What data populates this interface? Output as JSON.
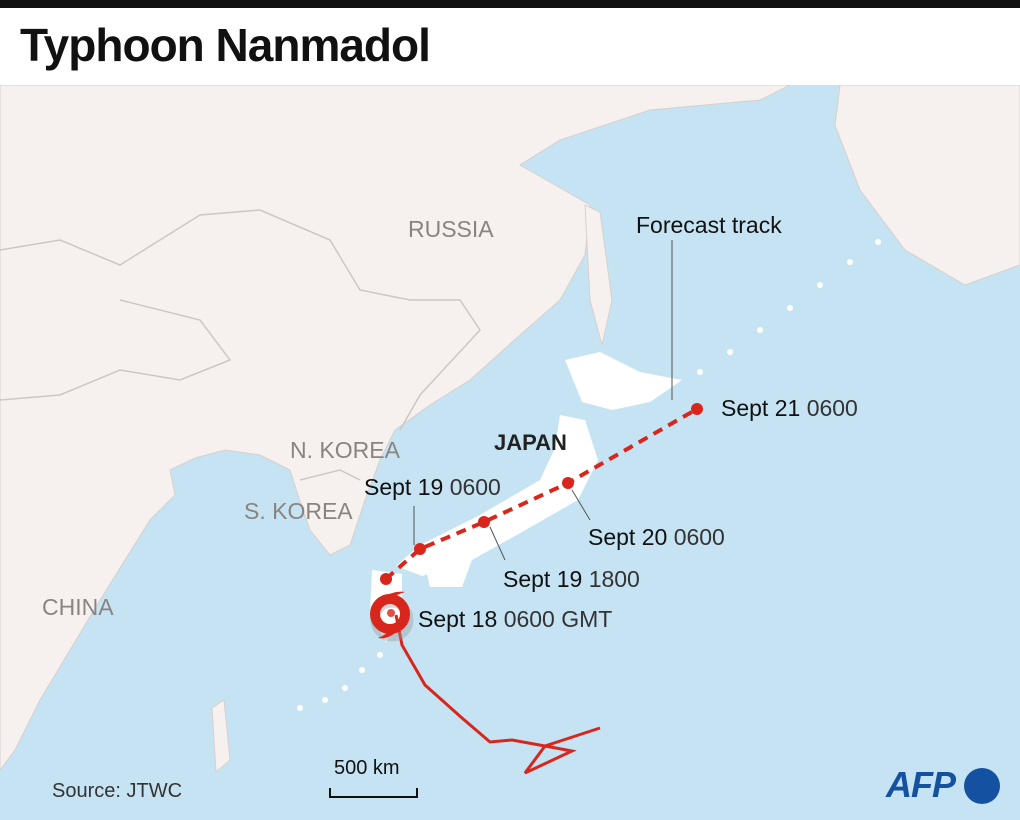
{
  "title": "Typhoon Nanmadol",
  "countries": [
    "RUSSIA",
    "N. KOREA",
    "S. KOREA",
    "CHINA"
  ],
  "japan_label": "JAPAN",
  "forecast_label": "Forecast track",
  "points": [
    {
      "date": "Sept 18",
      "time": "0600 GMT"
    },
    {
      "date": "Sept 19",
      "time": "0600"
    },
    {
      "date": "Sept 19",
      "time": "1800"
    },
    {
      "date": "Sept 20",
      "time": "0600"
    },
    {
      "date": "Sept 21",
      "time": "0600"
    }
  ],
  "scale_label": "500 km",
  "source": "Source: JTWC",
  "logo": "AFP",
  "colors": {
    "sea": "#c5e3f2",
    "land": "#f6f1ef",
    "japan": "#ffffff",
    "track": "#d9261c",
    "brand": "#1451a0"
  }
}
